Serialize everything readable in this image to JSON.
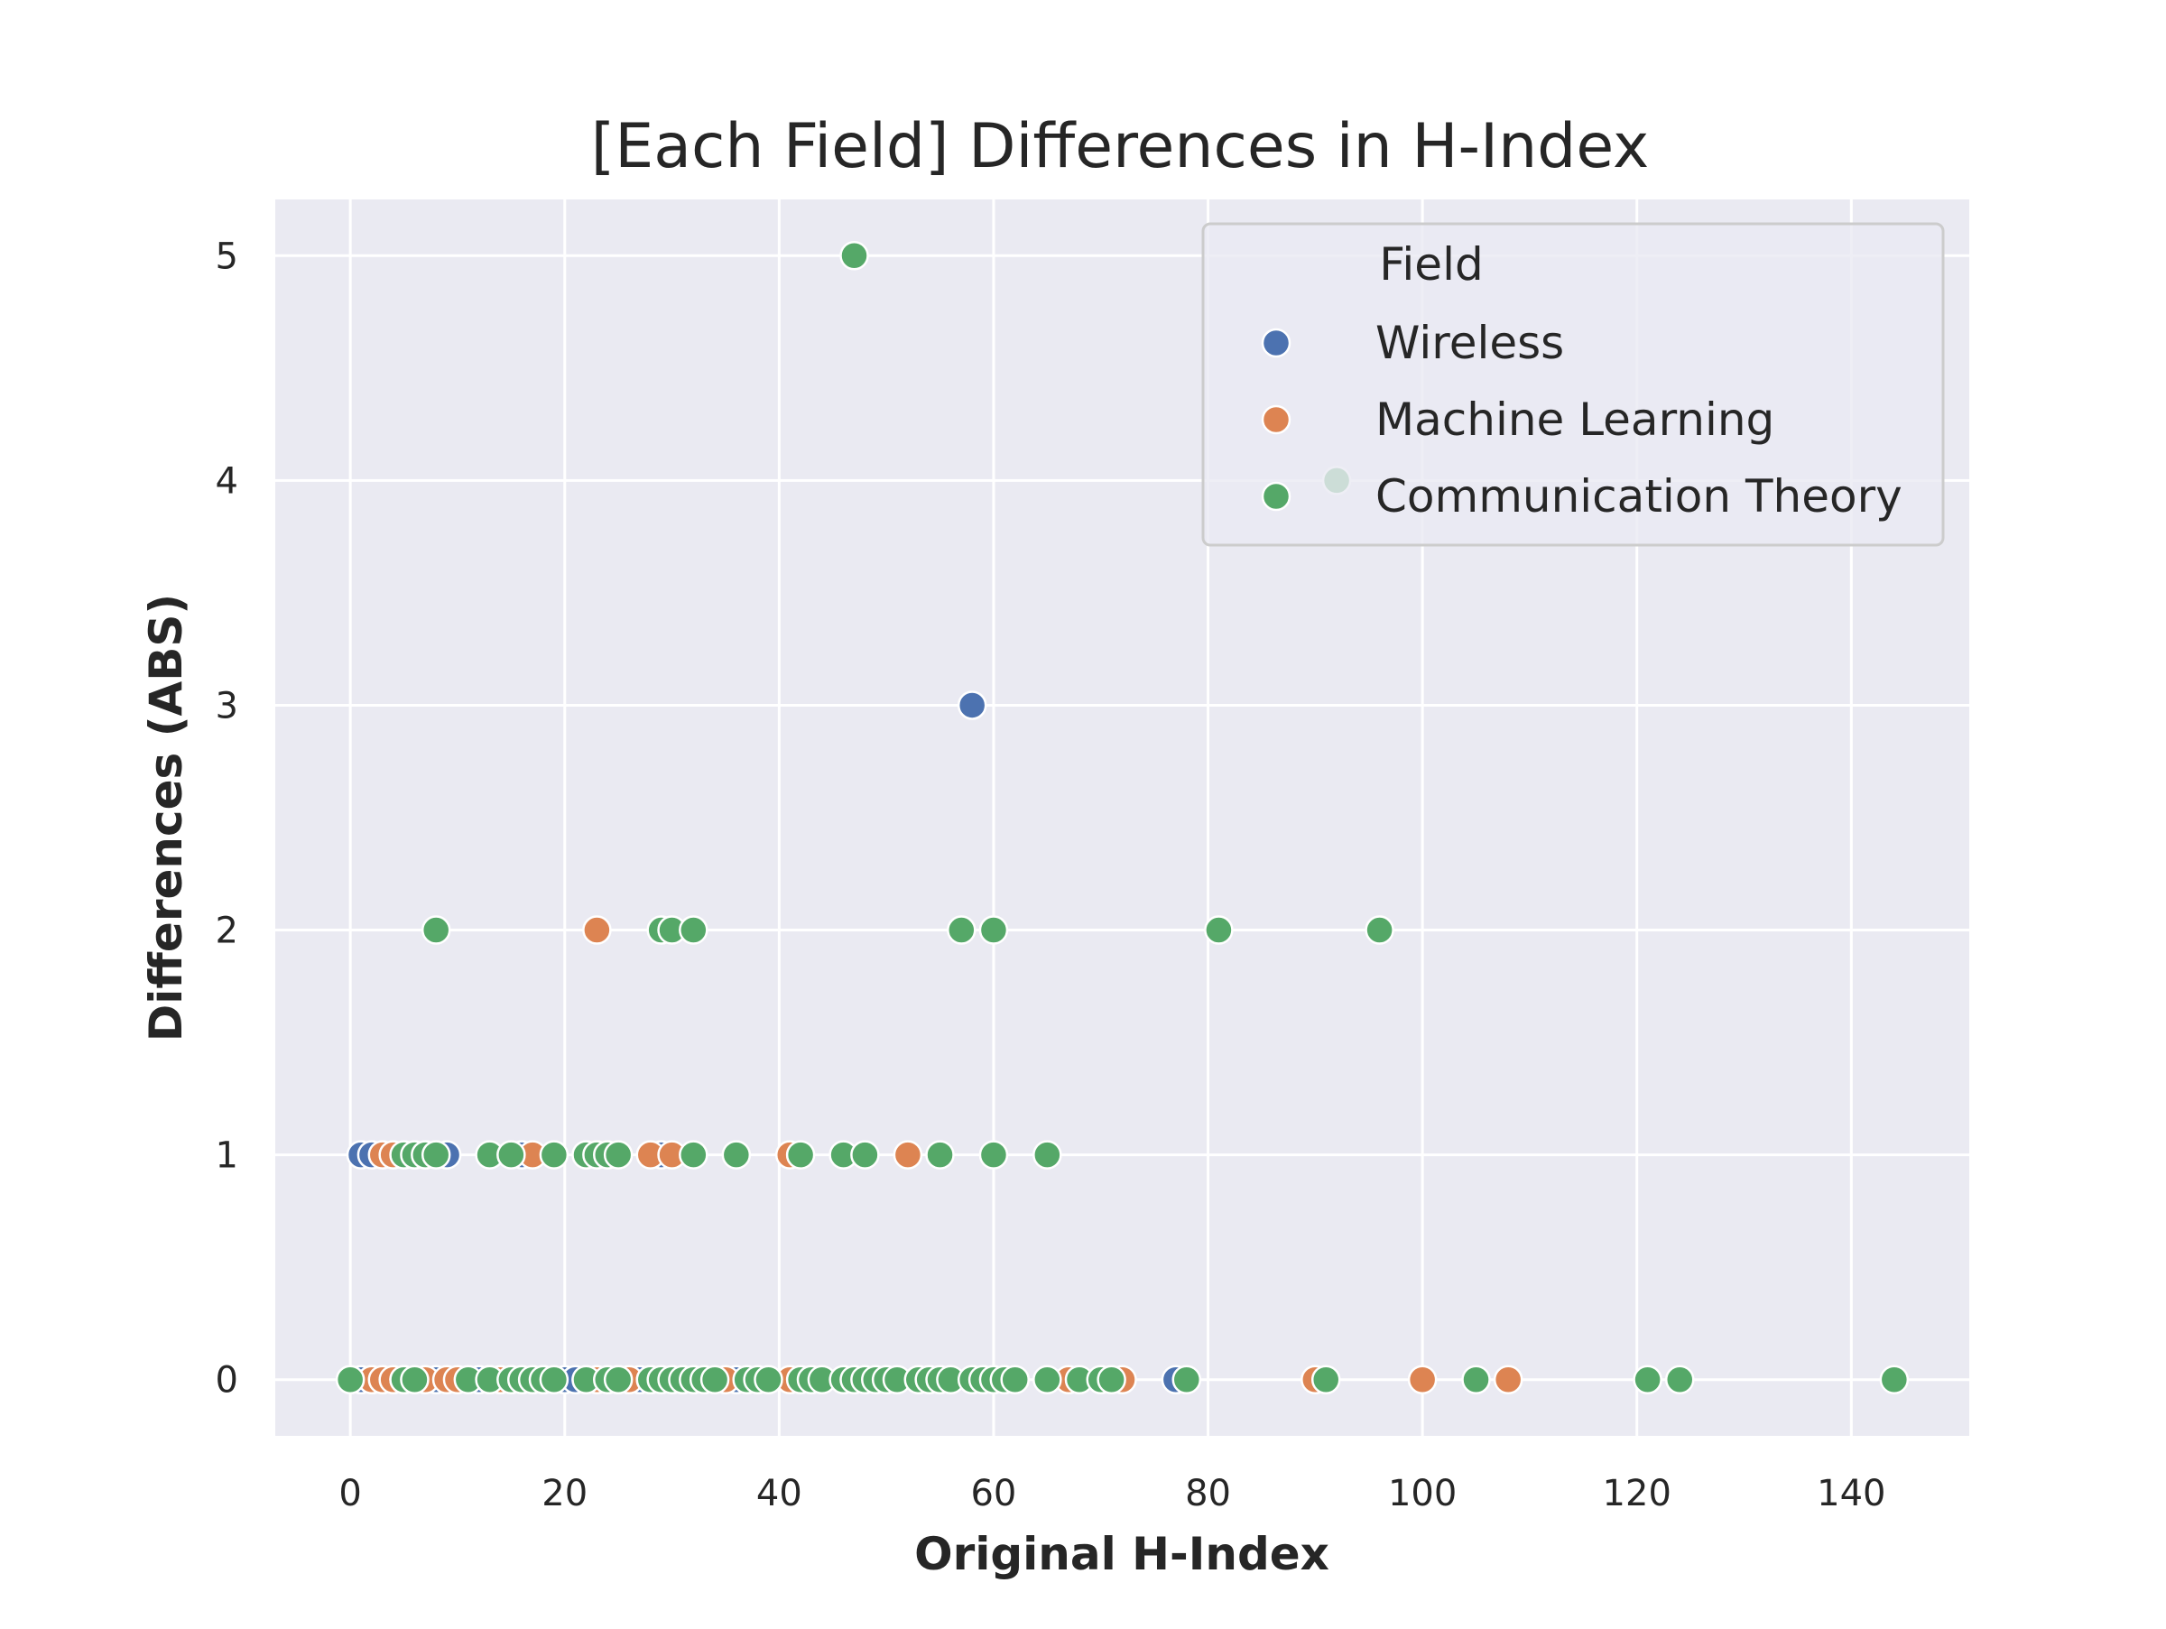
{
  "chart_data": {
    "type": "scatter",
    "title": "[Each Field] Differences in H-Index",
    "xlabel": "Original H-Index",
    "ylabel": "Differences (ABS)",
    "xlim": [
      -7,
      151
    ],
    "ylim": [
      -0.25,
      5.25
    ],
    "x_ticks": [
      0,
      20,
      40,
      60,
      80,
      100,
      120,
      140
    ],
    "y_ticks": [
      0,
      1,
      2,
      3,
      4,
      5
    ],
    "grid": true,
    "legend": {
      "title": "Field",
      "placement": "upper-right"
    },
    "series": [
      {
        "name": "Wireless",
        "color": "#4c72b0",
        "points": [
          [
            1,
            0
          ],
          [
            2,
            0
          ],
          [
            8,
            0
          ],
          [
            12,
            0
          ],
          [
            13,
            0
          ],
          [
            20,
            0
          ],
          [
            21,
            0
          ],
          [
            25,
            0
          ],
          [
            27,
            0
          ],
          [
            36,
            0
          ],
          [
            77,
            0
          ],
          [
            1,
            1
          ],
          [
            2,
            1
          ],
          [
            9,
            1
          ],
          [
            16,
            1
          ],
          [
            29,
            1
          ],
          [
            58,
            3
          ]
        ]
      },
      {
        "name": "Machine Learning",
        "color": "#dd8452",
        "points": [
          [
            2,
            0
          ],
          [
            3,
            0
          ],
          [
            4,
            0
          ],
          [
            5,
            0
          ],
          [
            7,
            0
          ],
          [
            9,
            0
          ],
          [
            10,
            0
          ],
          [
            14,
            0
          ],
          [
            18,
            0
          ],
          [
            22,
            0
          ],
          [
            23,
            0
          ],
          [
            26,
            0
          ],
          [
            28,
            0
          ],
          [
            31,
            0
          ],
          [
            35,
            0
          ],
          [
            41,
            0
          ],
          [
            67,
            0
          ],
          [
            72,
            0
          ],
          [
            90,
            0
          ],
          [
            100,
            0
          ],
          [
            108,
            0
          ],
          [
            3,
            1
          ],
          [
            4,
            1
          ],
          [
            17,
            1
          ],
          [
            28,
            1
          ],
          [
            30,
            1
          ],
          [
            41,
            1
          ],
          [
            52,
            1
          ],
          [
            23,
            2
          ]
        ]
      },
      {
        "name": "Communication Theory",
        "color": "#55a868",
        "points": [
          [
            0,
            0
          ],
          [
            5,
            0
          ],
          [
            6,
            0
          ],
          [
            11,
            0
          ],
          [
            13,
            0
          ],
          [
            15,
            0
          ],
          [
            16,
            0
          ],
          [
            17,
            0
          ],
          [
            18,
            0
          ],
          [
            19,
            0
          ],
          [
            22,
            0
          ],
          [
            24,
            0
          ],
          [
            25,
            0
          ],
          [
            28,
            0
          ],
          [
            29,
            0
          ],
          [
            30,
            0
          ],
          [
            31,
            0
          ],
          [
            32,
            0
          ],
          [
            33,
            0
          ],
          [
            34,
            0
          ],
          [
            37,
            0
          ],
          [
            38,
            0
          ],
          [
            39,
            0
          ],
          [
            42,
            0
          ],
          [
            43,
            0
          ],
          [
            44,
            0
          ],
          [
            46,
            0
          ],
          [
            47,
            0
          ],
          [
            48,
            0
          ],
          [
            49,
            0
          ],
          [
            50,
            0
          ],
          [
            51,
            0
          ],
          [
            53,
            0
          ],
          [
            54,
            0
          ],
          [
            55,
            0
          ],
          [
            56,
            0
          ],
          [
            58,
            0
          ],
          [
            59,
            0
          ],
          [
            60,
            0
          ],
          [
            61,
            0
          ],
          [
            62,
            0
          ],
          [
            65,
            0
          ],
          [
            68,
            0
          ],
          [
            70,
            0
          ],
          [
            71,
            0
          ],
          [
            78,
            0
          ],
          [
            91,
            0
          ],
          [
            105,
            0
          ],
          [
            121,
            0
          ],
          [
            124,
            0
          ],
          [
            144,
            0
          ],
          [
            5,
            1
          ],
          [
            6,
            1
          ],
          [
            7,
            1
          ],
          [
            8,
            1
          ],
          [
            13,
            1
          ],
          [
            15,
            1
          ],
          [
            19,
            1
          ],
          [
            22,
            1
          ],
          [
            23,
            1
          ],
          [
            24,
            1
          ],
          [
            25,
            1
          ],
          [
            32,
            1
          ],
          [
            36,
            1
          ],
          [
            42,
            1
          ],
          [
            46,
            1
          ],
          [
            48,
            1
          ],
          [
            55,
            1
          ],
          [
            60,
            1
          ],
          [
            65,
            1
          ],
          [
            8,
            2
          ],
          [
            29,
            2
          ],
          [
            30,
            2
          ],
          [
            32,
            2
          ],
          [
            57,
            2
          ],
          [
            60,
            2
          ],
          [
            81,
            2
          ],
          [
            96,
            2
          ],
          [
            92,
            4
          ],
          [
            47,
            5
          ]
        ]
      }
    ]
  }
}
